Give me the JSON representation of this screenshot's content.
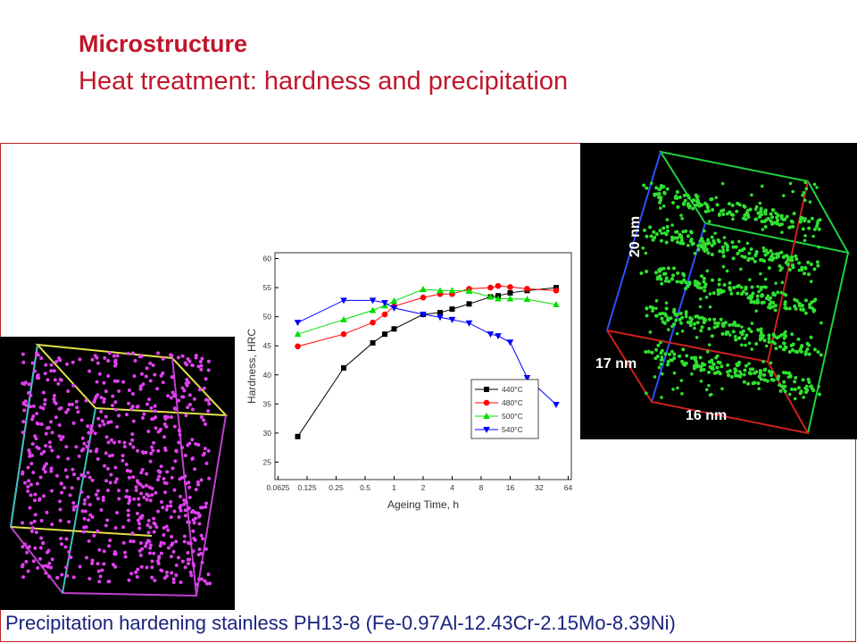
{
  "slide": {
    "title": "Microstructure",
    "subtitle": "Heat treatment: hardness and precipitation",
    "caption": "Precipitation hardening stainless PH13-8 (Fe-0.97Al-12.43Cr-2.15Mo-8.39Ni)",
    "scale_labels": [
      "20 nm",
      "17 nm",
      "16 nm"
    ]
  },
  "chart_data": {
    "type": "line",
    "x_label": "Ageing Time, h",
    "y_label": "Hardness, HRC",
    "log_x": true,
    "xlim": [
      0.058,
      69
    ],
    "xticks": [
      0.0625,
      0.125,
      0.25,
      0.5,
      1,
      2,
      4,
      8,
      16,
      32,
      64
    ],
    "ylim": [
      22,
      61
    ],
    "yticks": [
      25,
      30,
      35,
      40,
      45,
      50,
      55,
      60
    ],
    "legend": "lower-right",
    "x": [
      0.1,
      0.3,
      0.6,
      0.8,
      1,
      2,
      3,
      4,
      6,
      10,
      12,
      16,
      24,
      48
    ],
    "series": [
      {
        "name": "440°C",
        "color": "#000000",
        "marker": "square",
        "values": [
          29.4,
          41.2,
          45.5,
          47.0,
          47.9,
          50.4,
          50.7,
          51.3,
          52.2,
          53.4,
          53.6,
          54.1,
          54.5,
          55.0
        ]
      },
      {
        "name": "480°C",
        "color": "#ff0000",
        "marker": "circle",
        "values": [
          44.9,
          47.0,
          49.0,
          50.4,
          51.8,
          53.3,
          53.9,
          53.9,
          54.8,
          55.0,
          55.3,
          55.1,
          54.8,
          54.5
        ]
      },
      {
        "name": "500°C",
        "color": "#00dd00",
        "marker": "triangle-up",
        "values": [
          47.0,
          49.5,
          51.1,
          51.9,
          52.7,
          54.7,
          54.5,
          54.5,
          54.4,
          53.4,
          53.1,
          53.1,
          53.0,
          52.1
        ]
      },
      {
        "name": "540°C",
        "color": "#0000ff",
        "marker": "triangle-down",
        "values": [
          49.0,
          52.8,
          52.8,
          52.4,
          51.5,
          50.4,
          49.9,
          49.5,
          48.9,
          47.0,
          46.7,
          45.6,
          39.5,
          34.9
        ]
      }
    ]
  }
}
